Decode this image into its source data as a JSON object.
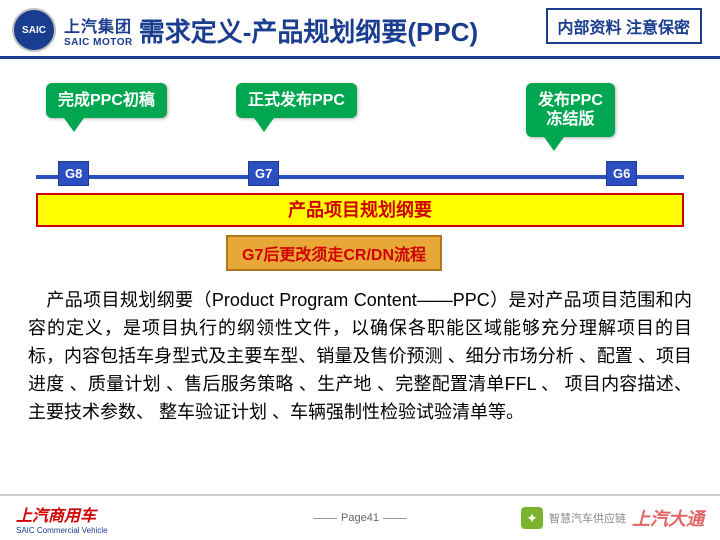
{
  "header": {
    "logo_badge": "SAIC",
    "logo_cn": "上汽集团",
    "logo_en": "SAIC MOTOR",
    "title": "需求定义-产品规划纲要(PPC)",
    "confidential": "内部资料 注意保密"
  },
  "diagram": {
    "callouts": {
      "c1": "完成PPC初稿",
      "c2": "正式发布PPC",
      "c3": "发布PPC\n冻结版"
    },
    "gates": {
      "g8": "G8",
      "g7": "G7",
      "g6": "G6"
    },
    "yellow_bar": "产品项目规划纲要",
    "orange_box": "G7后更改须走CR/DN流程",
    "colors": {
      "callout_bg": "#00a650",
      "timeline": "#2b4ec0",
      "yellow_bg": "#ffff00",
      "yellow_border": "#d00000",
      "orange_bg": "#e8a838"
    }
  },
  "body_text": "　产品项目规划纲要（Product Program Content——PPC）是对产品项目范围和内容的定义，是项目执行的纲领性文件，以确保各职能区域能够充分理解项目的目标，内容包括车身型式及主要车型、销量及售价预测 、细分市场分析 、配置 、项目进度 、质量计划 、售后服务策略 、生产地 、完整配置清单FFL 、 项目内容描述、主要技术参数、 整车验证计划 、车辆强制性检验试验清单等。",
  "footer": {
    "left_cn": "上汽商用车",
    "left_en": "SAIC Commercial Vehicle",
    "page": "Page41",
    "wechat_label": "智慧汽车供应链",
    "brand_right": "上汽大通"
  }
}
